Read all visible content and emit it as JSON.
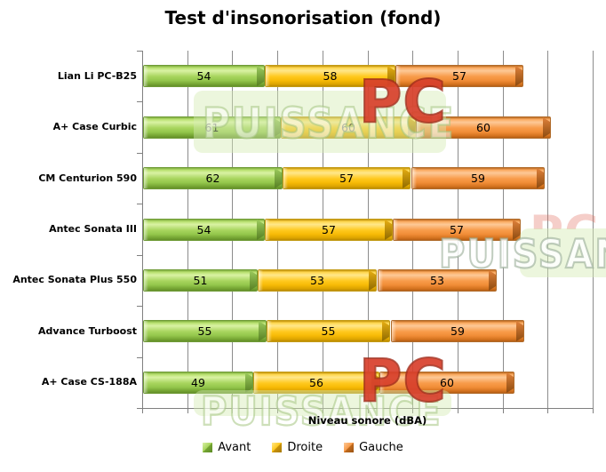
{
  "title": "Test d'insonorisation (fond)",
  "watermark": {
    "brand": "PUISSANCE",
    "brand_short": "PC"
  },
  "chart_data": {
    "type": "bar",
    "orientation": "horizontal",
    "stacked": true,
    "title": "Test d'insonorisation (fond)",
    "xlabel": "Niveau sonore (dBA)",
    "ylabel": "",
    "categories": [
      "Lian Li PC-B25",
      "A+ Case Curbic",
      "CM Centurion 590",
      "Antec Sonata III",
      "Antec Sonata Plus 550",
      "Advance Turboost",
      "A+ Case CS-188A"
    ],
    "series": [
      {
        "name": "Avant",
        "color": "#A3D55F",
        "values": [
          54,
          61,
          62,
          54,
          51,
          55,
          49
        ]
      },
      {
        "name": "Droite",
        "color": "#FFC81E",
        "values": [
          58,
          60,
          57,
          57,
          53,
          55,
          56
        ]
      },
      {
        "name": "Gauche",
        "color": "#F79646",
        "values": [
          57,
          60,
          59,
          57,
          53,
          59,
          60
        ]
      }
    ],
    "xlim": [
      0,
      200
    ],
    "xtick_step": 20,
    "grid": true,
    "gridline_color": "#8C8C8C",
    "axis_color": "#808080",
    "value_labels": true,
    "legend_position": "bottom"
  }
}
